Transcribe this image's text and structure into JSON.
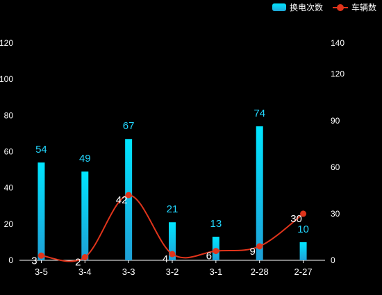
{
  "chart_data": {
    "type": "bar",
    "categories": [
      "3-5",
      "3-4",
      "3-3",
      "3-2",
      "3-1",
      "2-28",
      "2-27"
    ],
    "series": [
      {
        "name": "换电次数",
        "type": "bar",
        "axis": "left",
        "values": [
          54,
          49,
          67,
          21,
          13,
          74,
          10
        ],
        "color": "#00e5ff"
      },
      {
        "name": "车辆数",
        "type": "line",
        "axis": "right",
        "values": [
          3,
          2,
          42,
          4,
          6,
          9,
          30
        ],
        "color": "#e0341b"
      }
    ],
    "y_left": {
      "min": 0,
      "max": 120,
      "ticks": [
        "0",
        "20",
        "40",
        "60",
        "80",
        "100",
        "120"
      ]
    },
    "y_right": {
      "min": 0,
      "max": 140,
      "ticks": [
        "0",
        "30",
        "60",
        "90",
        "120",
        "140"
      ]
    },
    "grid": false,
    "legend_position": "top-right"
  },
  "colors": {
    "background": "#000000",
    "axis_text": "#ffffff",
    "bar_top": "#00e5ff",
    "bar_bottom": "#1f9fd6",
    "bar_label": "#22d7ff",
    "line": "#e0341b"
  }
}
